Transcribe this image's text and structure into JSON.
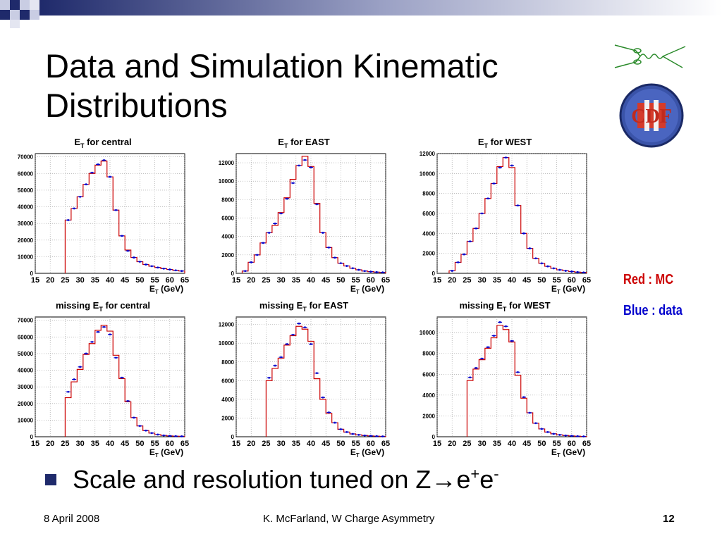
{
  "slide": {
    "title_line1": "Data and Simulation Kinematic",
    "title_line2": "Distributions",
    "legend_mc": "Red : MC",
    "legend_data": "Blue : data",
    "bullet_text_main": "Scale and resolution tuned on Z→e",
    "bullet_sup1": "+",
    "bullet_text_mid": "e",
    "bullet_sup2": "-",
    "footer_date": "8 April 2008",
    "footer_center": "K. McFarland, W Charge Asymmetry",
    "footer_page": "12",
    "colors": {
      "mc": "#cc0000",
      "data": "#0000cc",
      "bullet": "#1f2a6b",
      "deco": "#1f2a6b"
    }
  },
  "chart_data": [
    {
      "type": "histogram",
      "title_main": "E",
      "title_sub": "T",
      "title_suffix": " for central",
      "xlabel_main": "E",
      "xlabel_sub": "T",
      "xlabel_suffix": " (GeV)",
      "xlim": [
        15,
        65
      ],
      "ylim": [
        0,
        72000
      ],
      "xticks": [
        15,
        20,
        25,
        30,
        35,
        40,
        45,
        50,
        55,
        60,
        65
      ],
      "yticks": [
        0,
        10000,
        20000,
        30000,
        40000,
        50000,
        60000,
        70000
      ],
      "bin_edges": [
        25,
        27,
        29,
        31,
        33,
        35,
        37,
        39,
        41,
        43,
        45,
        47,
        49,
        51,
        53,
        55,
        57,
        59,
        61,
        63,
        65
      ],
      "mc": [
        32000,
        39000,
        46000,
        53500,
        60000,
        65000,
        67500,
        58000,
        38000,
        22500,
        14000,
        9500,
        7000,
        5300,
        4300,
        3500,
        2800,
        2300,
        1800,
        1400
      ],
      "data": [
        32000,
        39000,
        46000,
        53500,
        60500,
        65500,
        68000,
        58000,
        38000,
        22500,
        13500,
        9500,
        7000,
        5300,
        4300,
        3500,
        2800,
        2300,
        1800,
        1400
      ]
    },
    {
      "type": "histogram",
      "title_main": "E",
      "title_sub": "T",
      "title_suffix": " for EAST",
      "xlabel_main": "E",
      "xlabel_sub": "T",
      "xlabel_suffix": " (GeV)",
      "xlim": [
        15,
        65
      ],
      "ylim": [
        0,
        13000
      ],
      "xticks": [
        15,
        20,
        25,
        30,
        35,
        40,
        45,
        50,
        55,
        60,
        65
      ],
      "yticks": [
        0,
        2000,
        4000,
        6000,
        8000,
        10000,
        12000
      ],
      "bin_edges": [
        17,
        19,
        21,
        23,
        25,
        27,
        29,
        31,
        33,
        35,
        37,
        39,
        41,
        43,
        45,
        47,
        49,
        51,
        53,
        55,
        57,
        59,
        61,
        63,
        65
      ],
      "mc": [
        250,
        1200,
        2000,
        3300,
        4400,
        5200,
        6600,
        8200,
        10200,
        11700,
        12700,
        11600,
        7600,
        4400,
        2800,
        1700,
        1100,
        800,
        550,
        380,
        250,
        180,
        130,
        100
      ],
      "data": [
        250,
        1200,
        2000,
        3300,
        4400,
        5400,
        6500,
        8100,
        9800,
        11700,
        12300,
        11500,
        7500,
        4400,
        2800,
        1700,
        1100,
        800,
        550,
        380,
        250,
        180,
        130,
        100
      ]
    },
    {
      "type": "histogram",
      "title_main": "E",
      "title_sub": "T",
      "title_suffix": " for WEST",
      "xlabel_main": "E",
      "xlabel_sub": "T",
      "xlabel_suffix": " (GeV)",
      "xlim": [
        15,
        65
      ],
      "ylim": [
        0,
        12000
      ],
      "xticks": [
        15,
        20,
        25,
        30,
        35,
        40,
        45,
        50,
        55,
        60,
        65
      ],
      "yticks": [
        0,
        2000,
        4000,
        6000,
        8000,
        10000,
        12000
      ],
      "bin_edges": [
        19,
        21,
        23,
        25,
        27,
        29,
        31,
        33,
        35,
        37,
        39,
        41,
        43,
        45,
        47,
        49,
        51,
        53,
        55,
        57,
        59,
        61,
        63,
        65
      ],
      "mc": [
        250,
        1100,
        1900,
        3200,
        4500,
        6000,
        7500,
        9000,
        10700,
        11600,
        10600,
        6800,
        4000,
        2500,
        1500,
        1000,
        700,
        500,
        350,
        250,
        180,
        120,
        90
      ],
      "data": [
        250,
        1100,
        1900,
        3200,
        4500,
        6000,
        7500,
        9000,
        10600,
        11600,
        10800,
        6800,
        4000,
        2500,
        1500,
        1000,
        700,
        500,
        350,
        250,
        180,
        120,
        90
      ]
    },
    {
      "type": "histogram",
      "title_main": "missing E",
      "title_sub": "T",
      "title_suffix": " for central",
      "xlabel_main": "E",
      "xlabel_sub": "T",
      "xlabel_suffix": " (GeV)",
      "xlim": [
        15,
        65
      ],
      "ylim": [
        0,
        72000
      ],
      "xticks": [
        15,
        20,
        25,
        30,
        35,
        40,
        45,
        50,
        55,
        60,
        65
      ],
      "yticks": [
        0,
        10000,
        20000,
        30000,
        40000,
        50000,
        60000,
        70000
      ],
      "bin_edges": [
        25,
        27,
        29,
        31,
        33,
        35,
        37,
        39,
        41,
        43,
        45,
        47,
        49,
        51,
        53,
        55,
        57,
        59,
        61,
        63,
        65
      ],
      "mc": [
        23500,
        33000,
        40500,
        49500,
        56000,
        64000,
        67000,
        63500,
        49000,
        35000,
        21000,
        11500,
        6500,
        3700,
        2200,
        1300,
        800,
        500,
        350,
        250
      ],
      "data": [
        27000,
        34500,
        42000,
        50000,
        57000,
        63000,
        66000,
        61500,
        47500,
        35500,
        21500,
        11500,
        6500,
        3700,
        2200,
        1300,
        800,
        500,
        350,
        250
      ]
    },
    {
      "type": "histogram",
      "title_main": "missing E",
      "title_sub": "T",
      "title_suffix": " for EAST",
      "xlabel_main": "E",
      "xlabel_sub": "T",
      "xlabel_suffix": " (GeV)",
      "xlim": [
        15,
        65
      ],
      "ylim": [
        0,
        12800
      ],
      "xticks": [
        15,
        20,
        25,
        30,
        35,
        40,
        45,
        50,
        55,
        60,
        65
      ],
      "yticks": [
        0,
        2000,
        4000,
        6000,
        8000,
        10000,
        12000
      ],
      "bin_edges": [
        25,
        27,
        29,
        31,
        33,
        35,
        37,
        39,
        41,
        43,
        45,
        47,
        49,
        51,
        53,
        55,
        57,
        59,
        61,
        63,
        65
      ],
      "mc": [
        6000,
        7300,
        8400,
        9800,
        10800,
        11800,
        11500,
        10200,
        6200,
        4000,
        2500,
        1500,
        800,
        500,
        300,
        200,
        130,
        90,
        60,
        40
      ],
      "data": [
        6300,
        7600,
        8500,
        9900,
        10900,
        12100,
        11700,
        9900,
        6800,
        4200,
        2600,
        1500,
        800,
        500,
        300,
        200,
        130,
        90,
        60,
        40
      ]
    },
    {
      "type": "histogram",
      "title_main": "missing E",
      "title_sub": "T",
      "title_suffix": " for WEST",
      "xlabel_main": "E",
      "xlabel_sub": "T",
      "xlabel_suffix": " (GeV)",
      "xlim": [
        15,
        65
      ],
      "ylim": [
        0,
        11500
      ],
      "xticks": [
        15,
        20,
        25,
        30,
        35,
        40,
        45,
        50,
        55,
        60,
        65
      ],
      "yticks": [
        0,
        2000,
        4000,
        6000,
        8000,
        10000
      ],
      "bin_edges": [
        25,
        27,
        29,
        31,
        33,
        35,
        37,
        39,
        41,
        43,
        45,
        47,
        49,
        51,
        53,
        55,
        57,
        59,
        61,
        63,
        65
      ],
      "mc": [
        5400,
        6500,
        7400,
        8500,
        9500,
        10700,
        10300,
        9100,
        5900,
        3700,
        2300,
        1300,
        750,
        450,
        280,
        180,
        120,
        80,
        50,
        30
      ],
      "data": [
        5700,
        6600,
        7500,
        8600,
        9700,
        11000,
        10600,
        9200,
        6200,
        3800,
        2300,
        1300,
        750,
        450,
        280,
        180,
        120,
        80,
        50,
        30
      ]
    }
  ]
}
